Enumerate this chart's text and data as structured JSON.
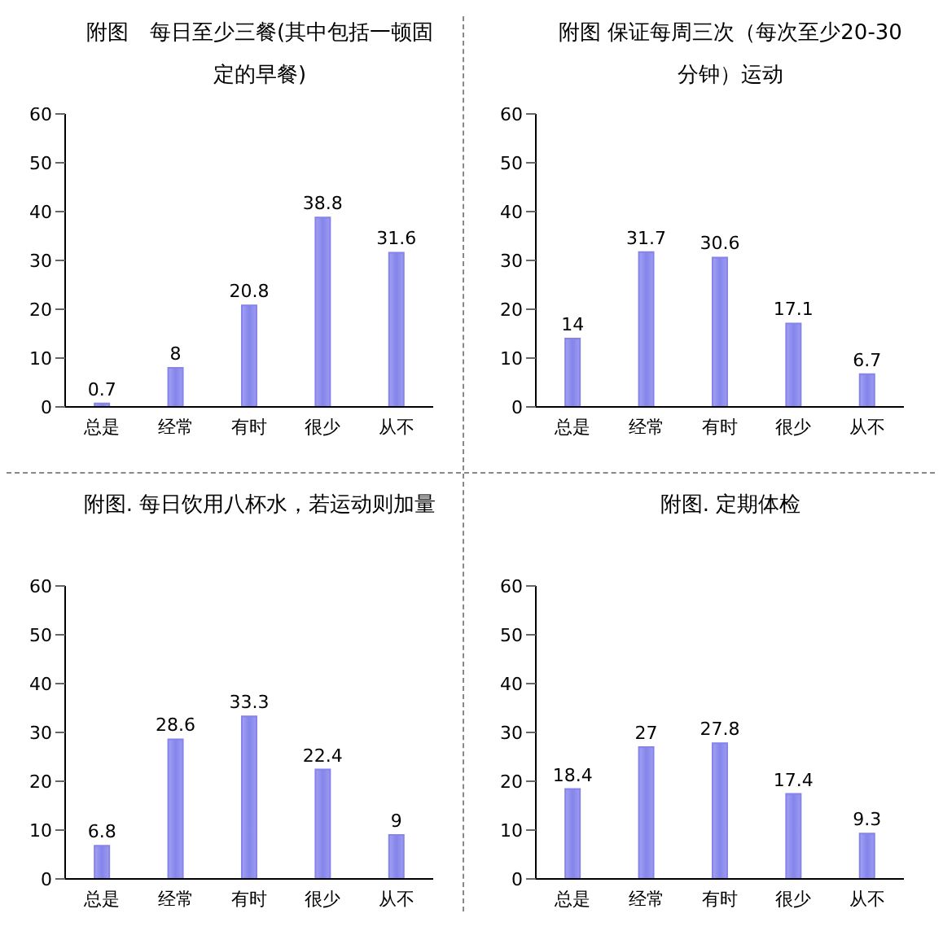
{
  "chart_data": [
    {
      "type": "bar",
      "title": "附图　每日至少三餐(其中包括一顿固定的早餐)",
      "categories": [
        "总是",
        "经常",
        "有时",
        "很少",
        "从不"
      ],
      "values": [
        0.7,
        8,
        20.8,
        38.8,
        31.6
      ],
      "color": "#8484ec",
      "ylim": [
        0,
        60
      ],
      "yticks": [
        0,
        10,
        20,
        30,
        40,
        50,
        60
      ],
      "data_labels": true,
      "grid": false,
      "legend": false
    },
    {
      "type": "bar",
      "title": "附图 保证每周三次（每次至少20-30分钟）运动",
      "categories": [
        "总是",
        "经常",
        "有时",
        "很少",
        "从不"
      ],
      "values": [
        14,
        31.7,
        30.6,
        17.1,
        6.7
      ],
      "color": "#8484ec",
      "ylim": [
        0,
        60
      ],
      "yticks": [
        0,
        10,
        20,
        30,
        40,
        50,
        60
      ],
      "data_labels": true,
      "grid": false,
      "legend": false
    },
    {
      "type": "bar",
      "title": "附图. 每日饮用八杯水，若运动则加量",
      "categories": [
        "总是",
        "经常",
        "有时",
        "很少",
        "从不"
      ],
      "values": [
        6.8,
        28.6,
        33.3,
        22.4,
        9
      ],
      "color": "#8484ec",
      "ylim": [
        0,
        60
      ],
      "yticks": [
        0,
        10,
        20,
        30,
        40,
        50,
        60
      ],
      "data_labels": true,
      "grid": false,
      "legend": false
    },
    {
      "type": "bar",
      "title": "附图. 定期体检",
      "categories": [
        "总是",
        "经常",
        "有时",
        "很少",
        "从不"
      ],
      "values": [
        18.4,
        27,
        27.8,
        17.4,
        9.3
      ],
      "color": "#8484ec",
      "ylim": [
        0,
        60
      ],
      "yticks": [
        0,
        10,
        20,
        30,
        40,
        50,
        60
      ],
      "data_labels": true,
      "grid": false,
      "legend": false
    }
  ]
}
